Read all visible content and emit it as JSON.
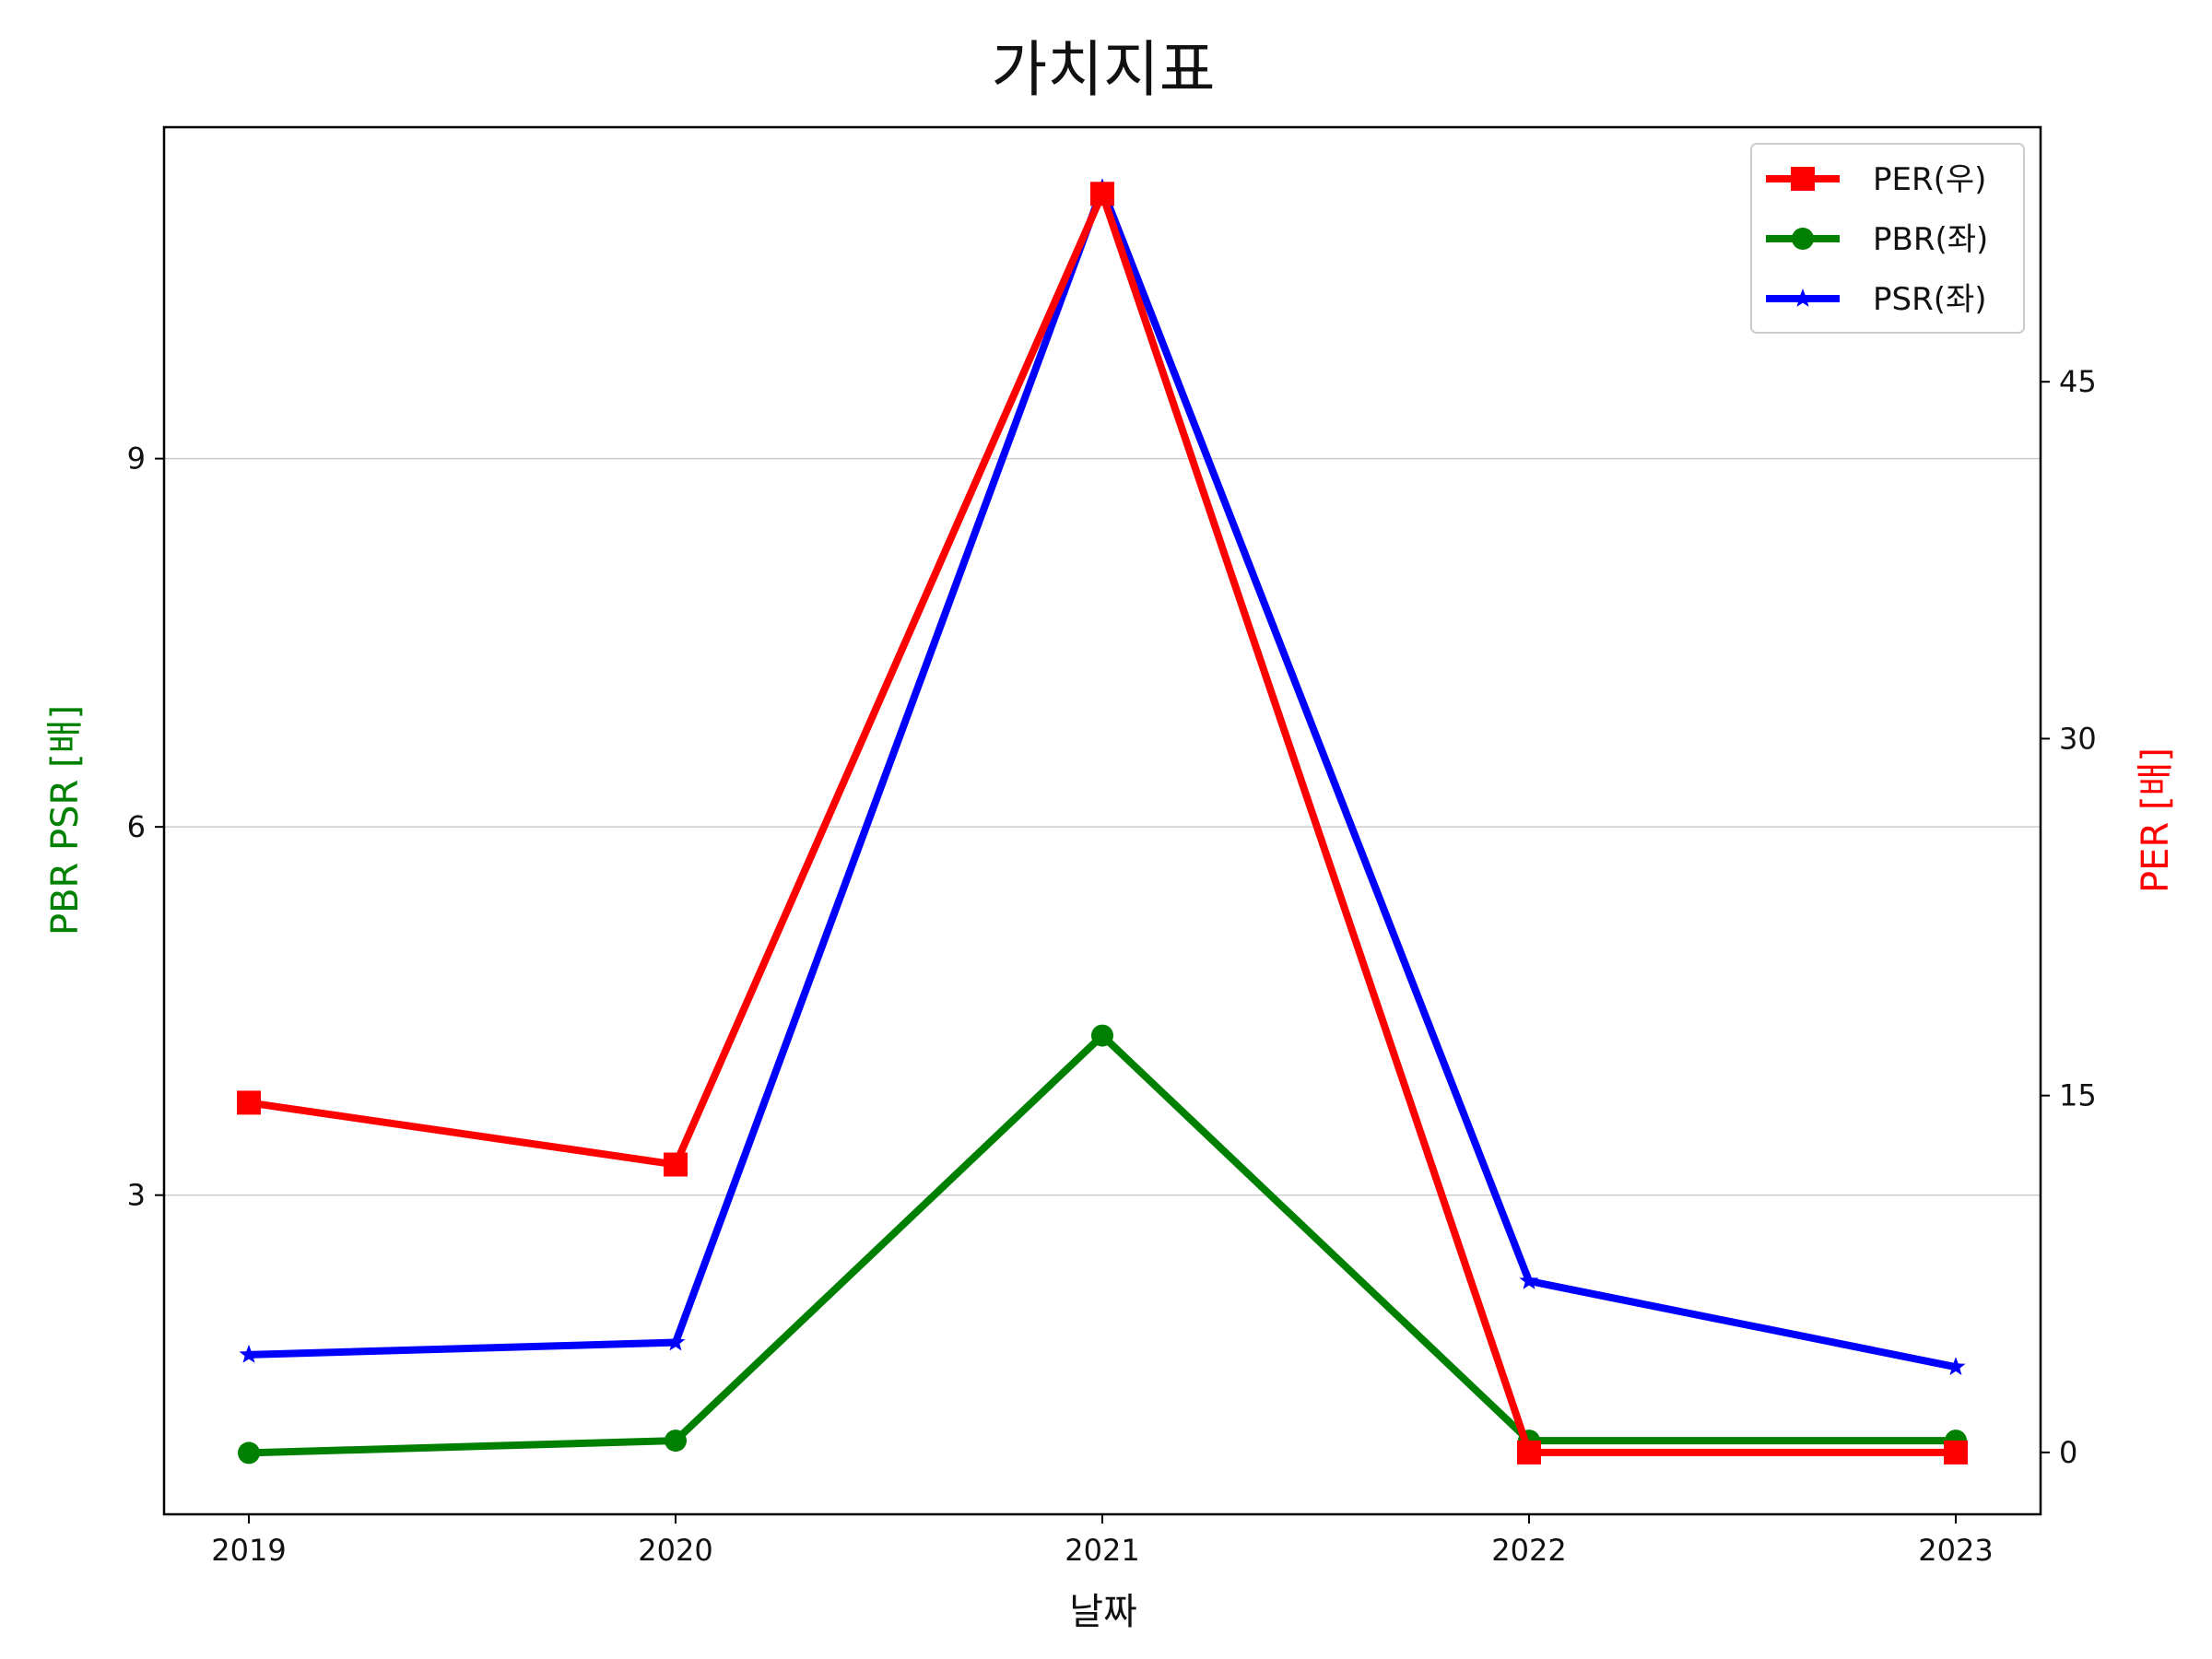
{
  "chart_data": {
    "type": "line",
    "title": "가치지표",
    "xlabel": "날짜",
    "ylabel_left": "PBR PSR [배]",
    "ylabel_right": "PER [배]",
    "categories": [
      "2019",
      "2020",
      "2021",
      "2022",
      "2023"
    ],
    "ylim_left": [
      0.4,
      11.7
    ],
    "ylim_right": [
      -2.6,
      55.7
    ],
    "yticks_left": [
      3,
      6,
      9
    ],
    "yticks_right": [
      0,
      15,
      30,
      45
    ],
    "ytick_labels_left": [
      "3",
      "6",
      "9"
    ],
    "ytick_labels_right": [
      "0",
      "15",
      "30",
      "45"
    ],
    "grid": "horizontal (left axis)",
    "legend_placement": "top-right",
    "series": [
      {
        "name": "PER(우)",
        "axis": "right",
        "color": "#ff0000",
        "marker": "square",
        "values": [
          14.7,
          12.1,
          52.9,
          0.0,
          0.0
        ]
      },
      {
        "name": "PBR(좌)",
        "axis": "left",
        "color": "#008000",
        "marker": "circle",
        "values": [
          0.9,
          1.0,
          4.3,
          1.0,
          1.0
        ]
      },
      {
        "name": "PSR(좌)",
        "axis": "left",
        "color": "#0000ff",
        "marker": "star",
        "values": [
          1.7,
          1.8,
          11.2,
          2.3,
          1.6
        ]
      }
    ],
    "colors": {
      "left_label": "#008000",
      "right_label": "#ff0000"
    }
  }
}
